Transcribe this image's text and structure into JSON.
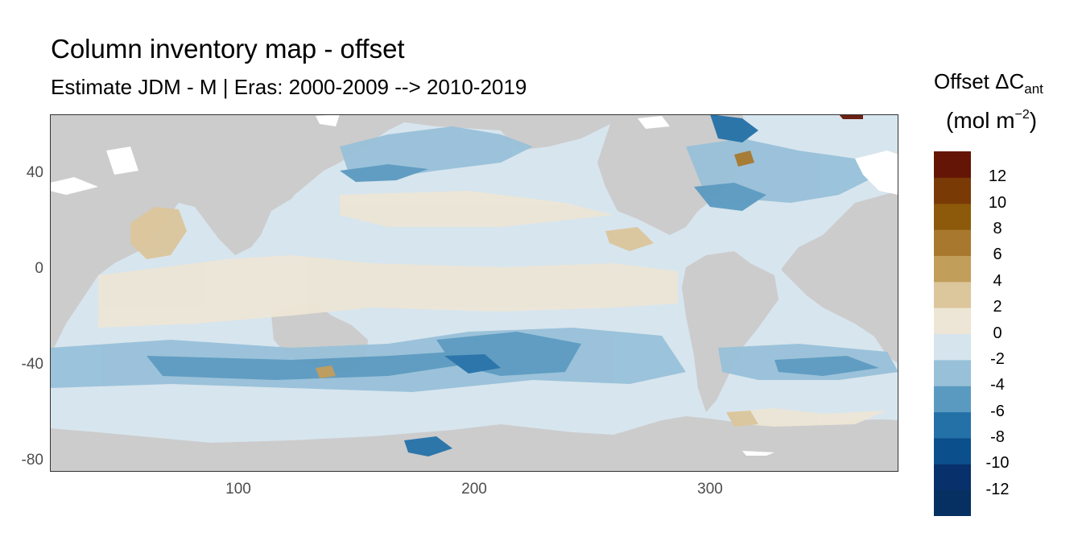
{
  "title": "Column inventory map - offset",
  "subtitle": "Estimate JDM - M | Eras: 2000-2009 --> 2010-2019",
  "legend": {
    "title_main": "Offset ΔC",
    "title_sub": "ant",
    "units_open": "(mol m",
    "units_exp": "−2",
    "units_close": ")",
    "bins": [
      {
        "color": "#053061"
      },
      {
        "color": "#08306b"
      },
      {
        "color": "#0b4f8c"
      },
      {
        "color": "#2471a8"
      },
      {
        "color": "#5b9ac0"
      },
      {
        "color": "#98c1d9"
      },
      {
        "color": "#d5e4ed"
      },
      {
        "color": "#ede6d6"
      },
      {
        "color": "#dcc69b"
      },
      {
        "color": "#c29e5b"
      },
      {
        "color": "#a8782e"
      },
      {
        "color": "#8c5a0a"
      },
      {
        "color": "#7a3a06"
      },
      {
        "color": "#651505"
      }
    ],
    "labels": [
      "12",
      "10",
      "8",
      "6",
      "4",
      "2",
      "0",
      "-2",
      "-4",
      "-6",
      "-8",
      "-10",
      "-12"
    ]
  },
  "axes": {
    "x_ticks": [
      "100",
      "200",
      "300"
    ],
    "y_ticks": [
      "40",
      "0",
      "-40",
      "-80"
    ],
    "x_range": [
      20,
      380
    ],
    "y_range": [
      -85,
      65
    ]
  },
  "colors": {
    "land": "#cccccc",
    "ocean_base": "#d7e5ee",
    "sea_ice_gaps": "#ffffff"
  }
}
